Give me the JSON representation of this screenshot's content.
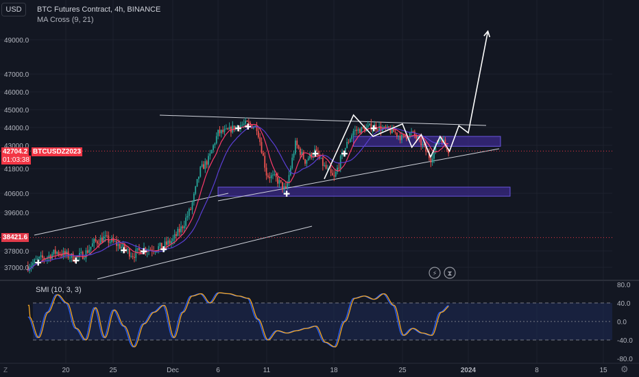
{
  "header": {
    "currency_button": "USD",
    "title": "BTC Futures Contract, 4h, BINANCE",
    "indicator": "MA Cross (9, 21)",
    "smi_indicator": "SMI (10, 3, 3)"
  },
  "price_tags": {
    "symbol": "BTCUSDZ2023",
    "last_price": "42704.2",
    "countdown": "01:03:38",
    "level_price": "38421.6"
  },
  "icons": {
    "lightning": "lightning-icon",
    "replay": "hourglass-icon",
    "timezone": "Z",
    "settings": "gear-icon"
  },
  "colors": {
    "background": "#131722",
    "up_candle": "#26a69a",
    "down_candle": "#ef5350",
    "ma_fast": "#ff3b6b",
    "ma_slow": "#5b3fd6",
    "zone": "#3b2a8a",
    "smi_blue": "#2962ff",
    "smi_orange": "#f5a623",
    "price_tag": "#f23645"
  },
  "chart_data": [
    {
      "type": "candlestick",
      "title": "BTC Futures Contract, 4h, BINANCE",
      "y_ticks": [
        "49000.0",
        "47000.0",
        "46000.0",
        "45000.0",
        "44000.0",
        "43000.0",
        "41800.0",
        "40600.0",
        "39600.0",
        "37800.0",
        "37000.0"
      ],
      "x_ticks": [
        "20",
        "25",
        "Dec",
        "6",
        "11",
        "18",
        "25",
        "2024",
        "8",
        "15"
      ],
      "close_path": [
        [
          "Nov 16",
          37050
        ],
        [
          "Nov 17",
          37350
        ],
        [
          "Nov 18",
          37500
        ],
        [
          "Nov 19",
          37750
        ],
        [
          "Nov 20",
          37600
        ],
        [
          "Nov 21",
          37450
        ],
        [
          "Nov 22",
          37650
        ],
        [
          "Nov 23",
          38200
        ],
        [
          "Nov 24",
          38400
        ],
        [
          "Nov 25",
          38200
        ],
        [
          "Nov 26",
          37950
        ],
        [
          "Nov 27",
          37600
        ],
        [
          "Nov 28",
          37900
        ],
        [
          "Nov 29",
          37900
        ],
        [
          "Nov 30",
          38000
        ],
        [
          "Dec 1",
          38300
        ],
        [
          "Dec 2",
          38900
        ],
        [
          "Dec 3",
          39800
        ],
        [
          "Dec 4",
          41700
        ],
        [
          "Dec 5",
          42300
        ],
        [
          "Dec 6",
          43700
        ],
        [
          "Dec 7",
          43800
        ],
        [
          "Dec 8",
          44100
        ],
        [
          "Dec 9",
          44200
        ],
        [
          "Dec 10",
          44000
        ],
        [
          "Dec 11",
          41500
        ],
        [
          "Dec 12",
          41300
        ],
        [
          "Dec 13",
          40700
        ],
        [
          "Dec 14",
          43100
        ],
        [
          "Dec 15",
          42200
        ],
        [
          "Dec 16",
          42700
        ],
        [
          "Dec 17",
          41900
        ],
        [
          "Dec 18",
          41300
        ],
        [
          "Dec 19",
          42700
        ],
        [
          "Dec 20",
          43800
        ],
        [
          "Dec 21",
          43900
        ],
        [
          "Dec 22",
          44100
        ],
        [
          "Dec 23",
          43900
        ],
        [
          "Dec 24",
          43800
        ],
        [
          "Dec 25",
          43400
        ],
        [
          "Dec 26",
          43700
        ],
        [
          "Dec 27",
          43100
        ],
        [
          "Dec 28",
          42300
        ],
        [
          "Dec 29",
          43500
        ],
        [
          "Dec 30",
          42704.2
        ]
      ],
      "annotations": {
        "horizontal_levels": [
          38421.6,
          42704.2
        ],
        "zones": [
          [
            42950,
            43500
          ],
          [
            40450,
            40900
          ]
        ],
        "projection_path": [
          [
            "Dec 17",
            41300
          ],
          [
            "Dec 20",
            44700
          ],
          [
            "Dec 22",
            43500
          ],
          [
            "Dec 25",
            44200
          ],
          [
            "Dec 26",
            42900
          ],
          [
            "Dec 27",
            43600
          ],
          [
            "Dec 28",
            42400
          ],
          [
            "Dec 29",
            43500
          ],
          [
            "Dec 30",
            42700
          ],
          [
            "Dec 31",
            44100
          ],
          [
            "Jan 1",
            43700
          ],
          [
            "Jan 3",
            49500
          ]
        ]
      }
    },
    {
      "type": "line",
      "title": "SMI (10, 3, 3)",
      "y_ticks": [
        "80.0",
        "40.0",
        "0.0",
        "-40.0",
        "-80.0"
      ],
      "ylim": [
        -80,
        80
      ],
      "bands": [
        40,
        -40
      ],
      "series": [
        {
          "name": "SMI",
          "values": [
            [
              "Nov 16",
              10
            ],
            [
              "Nov 17",
              -35
            ],
            [
              "Nov 18",
              20
            ],
            [
              "Nov 19",
              58
            ],
            [
              "Nov 20",
              40
            ],
            [
              "Nov 21",
              -15
            ],
            [
              "Nov 22",
              -40
            ],
            [
              "Nov 23",
              30
            ],
            [
              "Nov 24",
              -35
            ],
            [
              "Nov 25",
              25
            ],
            [
              "Nov 26",
              -10
            ],
            [
              "Nov 27",
              -55
            ],
            [
              "Nov 28",
              -5
            ],
            [
              "Nov 29",
              20
            ],
            [
              "Nov 30",
              35
            ],
            [
              "Dec 1",
              -35
            ],
            [
              "Dec 2",
              20
            ],
            [
              "Dec 3",
              55
            ],
            [
              "Dec 4",
              60
            ],
            [
              "Dec 5",
              40
            ],
            [
              "Dec 6",
              62
            ],
            [
              "Dec 7",
              60
            ],
            [
              "Dec 8",
              55
            ],
            [
              "Dec 9",
              50
            ],
            [
              "Dec 10",
              5
            ],
            [
              "Dec 11",
              -40
            ],
            [
              "Dec 12",
              -20
            ],
            [
              "Dec 13",
              -25
            ],
            [
              "Dec 14",
              -20
            ],
            [
              "Dec 15",
              -15
            ],
            [
              "Dec 16",
              -10
            ],
            [
              "Dec 17",
              -45
            ],
            [
              "Dec 18",
              -55
            ],
            [
              "Dec 19",
              0
            ],
            [
              "Dec 20",
              50
            ],
            [
              "Dec 21",
              55
            ],
            [
              "Dec 22",
              48
            ],
            [
              "Dec 23",
              60
            ],
            [
              "Dec 24",
              35
            ],
            [
              "Dec 25",
              -30
            ],
            [
              "Dec 26",
              -15
            ],
            [
              "Dec 27",
              -25
            ],
            [
              "Dec 28",
              -30
            ],
            [
              "Dec 29",
              20
            ],
            [
              "Dec 30",
              35
            ]
          ]
        }
      ]
    }
  ]
}
